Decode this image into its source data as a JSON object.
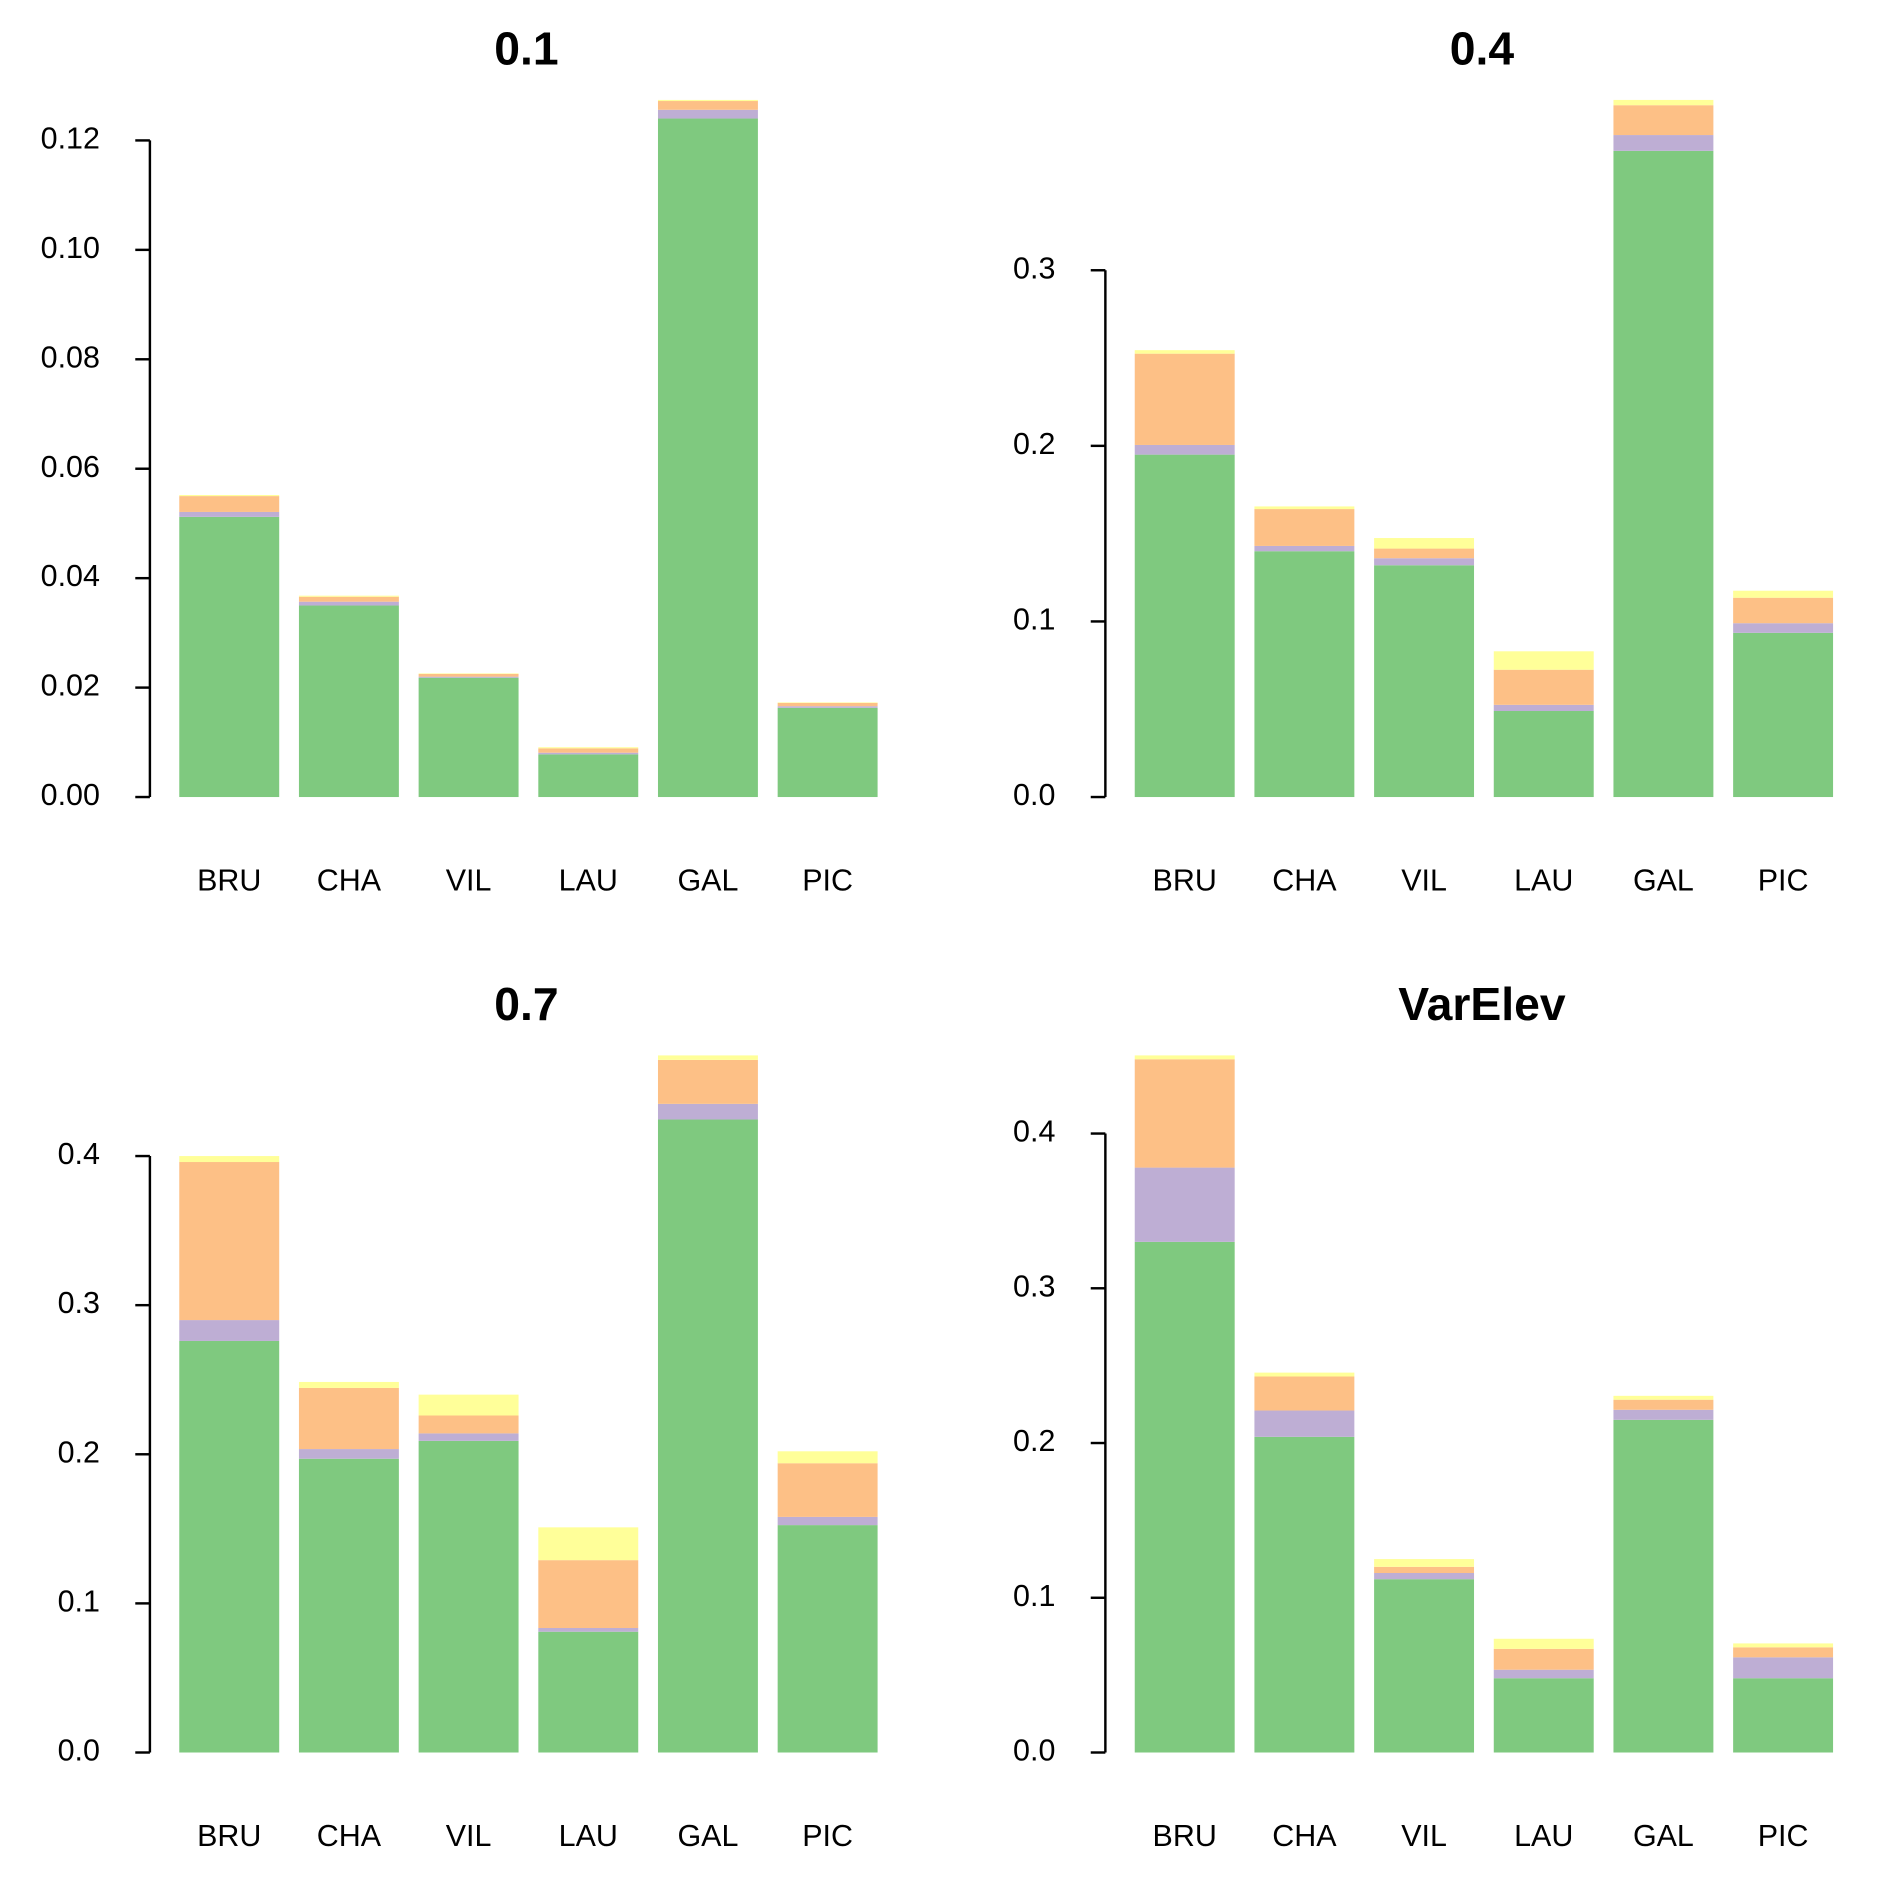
{
  "chart_data": [
    {
      "type": "stacked-bar",
      "title": "0.1",
      "categories": [
        "BRU",
        "CHA",
        "VIL",
        "LAU",
        "GAL",
        "PIC"
      ],
      "series": [
        {
          "color": "#7fc97f",
          "values": [
            0.0512,
            0.035,
            0.0218,
            0.0078,
            0.124,
            0.0163
          ]
        },
        {
          "color": "#beaed4",
          "values": [
            0.0009,
            0.0007,
            0.0002,
            0.0003,
            0.0016,
            0.0003
          ]
        },
        {
          "color": "#fdc086",
          "values": [
            0.0029,
            0.0009,
            0.0005,
            0.0008,
            0.0016,
            0.0006
          ]
        },
        {
          "color": "#ffff99",
          "values": [
            0.0002,
            0.0002,
            0.0001,
            0.0002,
            0.0002,
            0.0001
          ]
        }
      ],
      "ylim": [
        0,
        0.1274
      ],
      "yticks": [
        {
          "value": 0,
          "label": "0.00"
        },
        0.02,
        0.04,
        0.06,
        0.08,
        {
          "value": 0.1,
          "label": "0.10"
        },
        0.12
      ]
    },
    {
      "type": "stacked-bar",
      "title": "0.4",
      "categories": [
        "BRU",
        "CHA",
        "VIL",
        "LAU",
        "GAL",
        "PIC"
      ],
      "series": [
        {
          "color": "#7fc97f",
          "values": [
            0.195,
            0.14,
            0.132,
            0.049,
            0.368,
            0.0935
          ]
        },
        {
          "color": "#beaed4",
          "values": [
            0.0055,
            0.003,
            0.004,
            0.0035,
            0.009,
            0.0055
          ]
        },
        {
          "color": "#fdc086",
          "values": [
            0.052,
            0.021,
            0.0055,
            0.02,
            0.017,
            0.0145
          ]
        },
        {
          "color": "#ffff99",
          "values": [
            0.002,
            0.0015,
            0.006,
            0.0105,
            0.003,
            0.004
          ]
        }
      ],
      "ylim": [
        0,
        0.397
      ],
      "yticks": [
        {
          "value": 0,
          "label": "0.0"
        },
        0.1,
        0.2,
        0.3
      ]
    },
    {
      "type": "stacked-bar",
      "title": "0.7",
      "categories": [
        "BRU",
        "CHA",
        "VIL",
        "LAU",
        "GAL",
        "PIC"
      ],
      "series": [
        {
          "color": "#7fc97f",
          "values": [
            0.276,
            0.197,
            0.209,
            0.081,
            0.4245,
            0.1525
          ]
        },
        {
          "color": "#beaed4",
          "values": [
            0.014,
            0.0065,
            0.005,
            0.0025,
            0.0105,
            0.0055
          ]
        },
        {
          "color": "#fdc086",
          "values": [
            0.106,
            0.041,
            0.012,
            0.0455,
            0.0295,
            0.036
          ]
        },
        {
          "color": "#ffff99",
          "values": [
            0.004,
            0.004,
            0.014,
            0.022,
            0.003,
            0.008
          ]
        }
      ],
      "ylim": [
        0,
        0.4675
      ],
      "yticks": [
        {
          "value": 0,
          "label": "0.0"
        },
        0.1,
        0.2,
        0.3,
        0.4
      ]
    },
    {
      "type": "stacked-bar",
      "title": "VarElev",
      "categories": [
        "BRU",
        "CHA",
        "VIL",
        "LAU",
        "GAL",
        "PIC"
      ],
      "series": [
        {
          "color": "#7fc97f",
          "values": [
            0.33,
            0.204,
            0.112,
            0.048,
            0.215,
            0.048
          ]
        },
        {
          "color": "#beaed4",
          "values": [
            0.048,
            0.017,
            0.004,
            0.0055,
            0.0065,
            0.0135
          ]
        },
        {
          "color": "#fdc086",
          "values": [
            0.07,
            0.022,
            0.004,
            0.0135,
            0.0065,
            0.0065
          ]
        },
        {
          "color": "#ffff99",
          "values": [
            0.0025,
            0.0025,
            0.005,
            0.0065,
            0.0025,
            0.0025
          ]
        }
      ],
      "ylim": [
        0,
        0.4505
      ],
      "yticks": [
        {
          "value": 0,
          "label": "0.0"
        },
        0.1,
        0.2,
        0.3,
        0.4
      ]
    }
  ]
}
